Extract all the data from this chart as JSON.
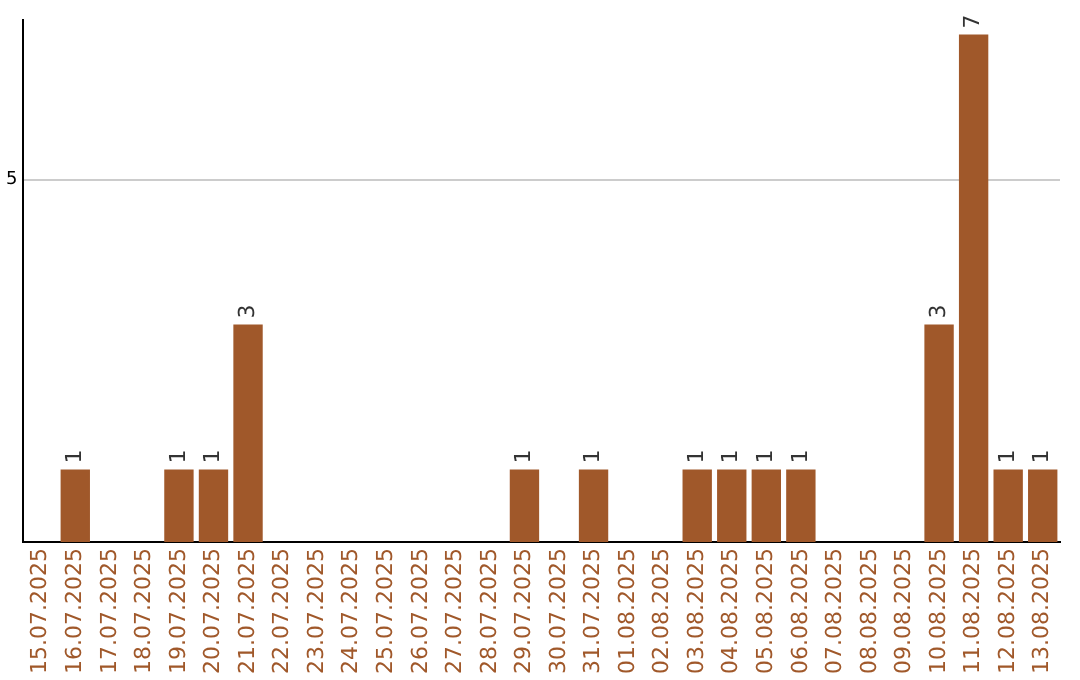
{
  "chart_data": {
    "type": "bar",
    "categories": [
      "15.07.2025",
      "16.07.2025",
      "17.07.2025",
      "18.07.2025",
      "19.07.2025",
      "20.07.2025",
      "21.07.2025",
      "22.07.2025",
      "23.07.2025",
      "24.07.2025",
      "25.07.2025",
      "26.07.2025",
      "27.07.2025",
      "28.07.2025",
      "29.07.2025",
      "30.07.2025",
      "31.07.2025",
      "01.08.2025",
      "02.08.2025",
      "03.08.2025",
      "04.08.2025",
      "05.08.2025",
      "06.08.2025",
      "07.08.2025",
      "08.08.2025",
      "09.08.2025",
      "10.08.2025",
      "11.08.2025",
      "12.08.2025",
      "13.08.2025"
    ],
    "values": [
      0,
      1,
      0,
      0,
      1,
      1,
      3,
      0,
      0,
      0,
      0,
      0,
      0,
      0,
      1,
      0,
      1,
      0,
      0,
      1,
      1,
      1,
      1,
      0,
      0,
      0,
      3,
      7,
      1,
      1
    ],
    "value_labels": [
      null,
      "1",
      null,
      null,
      "1",
      "1",
      "3",
      null,
      null,
      null,
      null,
      null,
      null,
      null,
      "1",
      null,
      "1",
      null,
      null,
      "1",
      "1",
      "1",
      "1",
      null,
      null,
      null,
      "3",
      "7",
      "1",
      "1"
    ],
    "color": "#a0582a",
    "ylim": [
      0,
      7.2
    ],
    "yticks": [
      5
    ],
    "grid": "y",
    "legend": false
  }
}
